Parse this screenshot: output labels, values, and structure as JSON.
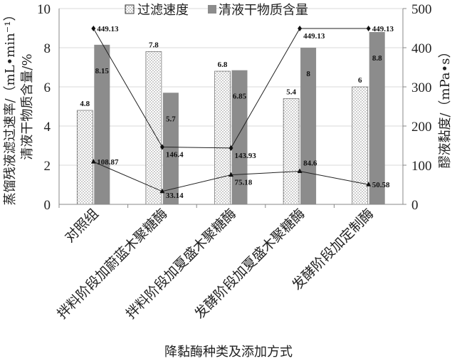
{
  "chart_data": {
    "type": "bar",
    "categories": [
      "对照组",
      "拌料阶段加蔚蓝木聚糖酶",
      "拌料阶段加夏盛木聚糖酶",
      "发酵阶段加夏盛木聚糖酶",
      "发酵阶段加定制酶"
    ],
    "series": [
      {
        "name": "过滤速度",
        "type": "bar",
        "axis": "left",
        "pattern": "dotted",
        "values": [
          4.8,
          7.8,
          6.8,
          5.4,
          6
        ],
        "labels": [
          "4.8",
          "7.8",
          "6.8",
          "5.4",
          "6"
        ]
      },
      {
        "name": "清液干物质含量",
        "type": "bar",
        "axis": "left",
        "color": "#8c8c8c",
        "values": [
          8.15,
          5.7,
          6.85,
          8,
          8.8
        ],
        "labels": [
          "8.15",
          "5.7",
          "6.85",
          "8",
          "8.8"
        ]
      },
      {
        "name": "",
        "type": "line",
        "axis": "right",
        "marker": "diamond",
        "values": [
          449.13,
          146.4,
          143.93,
          449.13,
          449.13
        ],
        "labels": [
          "449.13",
          "146.4",
          "143.93",
          "449.13",
          "449.13"
        ]
      },
      {
        "name": "",
        "type": "line",
        "axis": "right",
        "marker": "triangle",
        "values": [
          108.87,
          33.14,
          75.18,
          84.6,
          50.58
        ],
        "labels": [
          "108.87",
          "33.14",
          "75.18",
          "84.6",
          "50.58"
        ]
      }
    ],
    "ylabel_line1": "蒸馏残液滤过速率/（mL•min⁻¹）",
    "ylabel_line2": "清液干物质含量/%",
    "y2label": "醪液黏度/（mPa•s）",
    "xlabel": "降黏酶种类及添加方式",
    "ylim": [
      0,
      10
    ],
    "y2lim": [
      0,
      500
    ],
    "yticks": [
      "0",
      "2",
      "4",
      "6",
      "8",
      "10"
    ],
    "y2ticks": [
      "0",
      "100",
      "200",
      "300",
      "400",
      "500"
    ],
    "grid": true,
    "legend": "top"
  }
}
